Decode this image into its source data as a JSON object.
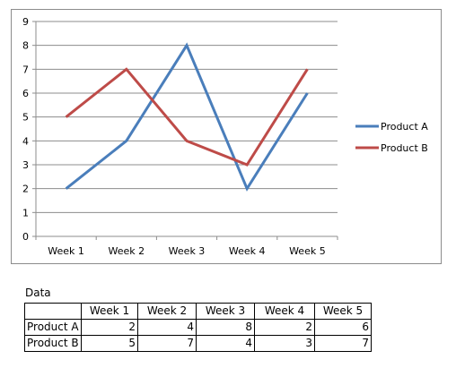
{
  "chart_data": {
    "type": "line",
    "categories": [
      "Week 1",
      "Week 2",
      "Week 3",
      "Week 4",
      "Week 5"
    ],
    "series": [
      {
        "name": "Product A",
        "values": [
          2,
          4,
          8,
          2,
          6
        ],
        "color": "#4a7ebb"
      },
      {
        "name": "Product B",
        "values": [
          5,
          7,
          4,
          3,
          7
        ],
        "color": "#be4b48"
      }
    ],
    "title": "",
    "xlabel": "",
    "ylabel": "",
    "ylim": [
      0,
      9
    ],
    "yticks": [
      "0",
      "1",
      "2",
      "3",
      "4",
      "5",
      "6",
      "7",
      "8",
      "9"
    ],
    "grid": true,
    "legend_position": "right"
  },
  "data_section": {
    "title": "Data",
    "headers": [
      "Week 1",
      "Week 2",
      "Week 3",
      "Week 4",
      "Week 5"
    ],
    "rows": [
      {
        "label": "Product A",
        "values": [
          "2",
          "4",
          "8",
          "2",
          "6"
        ]
      },
      {
        "label": "Product B",
        "values": [
          "5",
          "7",
          "4",
          "3",
          "7"
        ]
      }
    ]
  }
}
